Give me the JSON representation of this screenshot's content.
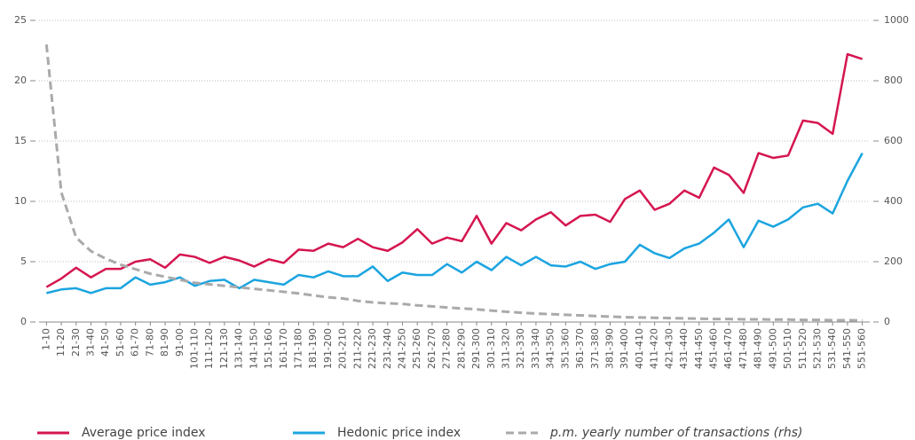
{
  "chart_data": {
    "type": "line",
    "categories": [
      "1-10",
      "11-20",
      "21-30",
      "31-40",
      "41-50",
      "51-60",
      "61-70",
      "71-80",
      "81-90",
      "91-00",
      "101-110",
      "111-120",
      "121-130",
      "131-140",
      "141-150",
      "151-160",
      "161-170",
      "171-180",
      "181-190",
      "191-200",
      "201-210",
      "211-220",
      "221-230",
      "231-240",
      "241-250",
      "251-260",
      "261-270",
      "271-280",
      "281-290",
      "291-300",
      "301-310",
      "311-320",
      "321-330",
      "331-340",
      "341-350",
      "351-360",
      "361-370",
      "371-380",
      "381-390",
      "391-400",
      "401-410",
      "411-420",
      "421-430",
      "431-440",
      "441-450",
      "451-460",
      "461-470",
      "471-480",
      "481-490",
      "491-500",
      "501-510",
      "511-520",
      "521-530",
      "531-540",
      "541-550",
      "551-560"
    ],
    "series": [
      {
        "name": "Average price index",
        "color": "#d5154f",
        "values": [
          2.9,
          3.6,
          4.5,
          3.7,
          4.4,
          4.4,
          5.0,
          5.2,
          4.5,
          5.6,
          5.4,
          4.9,
          5.4,
          5.1,
          4.6,
          5.2,
          4.9,
          6.0,
          5.9,
          6.5,
          6.2,
          6.9,
          6.2,
          5.9,
          6.6,
          7.7,
          6.5,
          7.0,
          6.7,
          8.8,
          6.5,
          8.2,
          7.6,
          8.5,
          9.1,
          8.0,
          8.8,
          8.9,
          8.3,
          10.2,
          10.9,
          9.3,
          9.8,
          10.9,
          10.3,
          12.8,
          12.2,
          10.7,
          14.0,
          13.6,
          13.8,
          16.7,
          16.5,
          15.6,
          22.2,
          21.8
        ]
      },
      {
        "name": "Hedonic price index",
        "color": "#1ba4e0",
        "values": [
          2.4,
          2.7,
          2.8,
          2.4,
          2.8,
          2.8,
          3.7,
          3.1,
          3.3,
          3.7,
          3.0,
          3.4,
          3.5,
          2.8,
          3.5,
          3.3,
          3.1,
          3.9,
          3.7,
          4.2,
          3.8,
          3.8,
          4.6,
          3.4,
          4.1,
          3.9,
          3.9,
          4.8,
          4.1,
          5.0,
          4.3,
          5.4,
          4.7,
          5.4,
          4.7,
          4.6,
          5.0,
          4.4,
          4.8,
          5.0,
          6.4,
          5.7,
          5.3,
          6.1,
          6.5,
          7.4,
          8.5,
          6.2,
          8.4,
          7.9,
          8.5,
          9.5,
          9.8,
          9.0,
          11.7,
          14.0
        ]
      },
      {
        "name": "p.m. yearly number of transactions (rhs)",
        "color": "#aaaaaa",
        "dash": true,
        "axis": "y2",
        "values": [
          920,
          430,
          280,
          235,
          210,
          190,
          175,
          160,
          150,
          140,
          130,
          125,
          120,
          115,
          110,
          105,
          100,
          95,
          88,
          82,
          78,
          70,
          65,
          62,
          60,
          55,
          52,
          48,
          45,
          42,
          38,
          34,
          31,
          28,
          26,
          24,
          22,
          20,
          18,
          16,
          15,
          14,
          13,
          12,
          11,
          10,
          10,
          9,
          9,
          8,
          8,
          7,
          7,
          6,
          6,
          5
        ]
      }
    ],
    "ylim": [
      0,
      25
    ],
    "yticks": [
      0,
      5,
      10,
      15,
      20,
      25
    ],
    "y2lim": [
      0,
      1000
    ],
    "y2ticks": [
      0,
      200,
      400,
      600,
      800,
      1000
    ],
    "grid": true,
    "legend": "bottom"
  }
}
